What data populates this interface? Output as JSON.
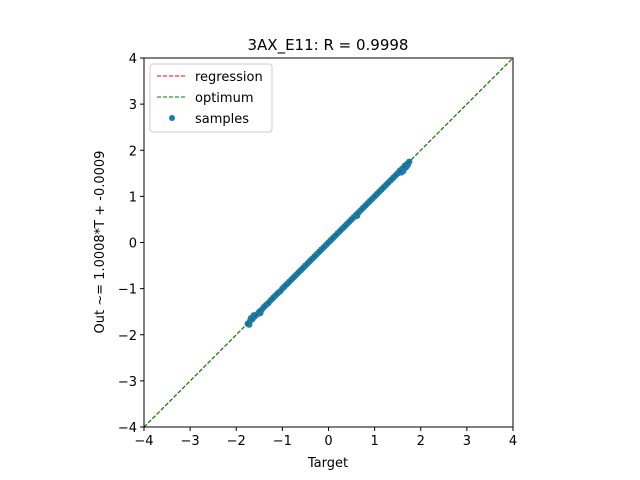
{
  "chart_data": {
    "type": "scatter",
    "title": "3AX_E11: R = 0.9998",
    "xlabel": "Target",
    "ylabel": "Out ~= 1.0008*T + -0.0009",
    "xlim": [
      -4,
      4
    ],
    "ylim": [
      -4,
      4
    ],
    "xticks": [
      -4,
      -3,
      -2,
      -1,
      0,
      1,
      2,
      3,
      4
    ],
    "yticks": [
      -4,
      -3,
      -2,
      -1,
      0,
      1,
      2,
      3,
      4
    ],
    "grid": false,
    "legend_position": "top-left",
    "series": [
      {
        "name": "regression",
        "kind": "line",
        "style": "dashed",
        "color": "#ff0000",
        "slope": 1.0008,
        "intercept": -0.0009
      },
      {
        "name": "optimum",
        "kind": "line",
        "style": "dashed",
        "color": "#008000",
        "slope": 1,
        "intercept": 0
      },
      {
        "name": "samples",
        "kind": "scatter",
        "color": "#1f77b4",
        "x_range": [
          -1.75,
          1.75
        ],
        "points": [
          [
            -1.75,
            -1.76
          ],
          [
            -1.7,
            -1.7
          ],
          [
            -1.65,
            -1.66
          ],
          [
            -1.6,
            -1.6
          ],
          [
            -1.55,
            -1.56
          ],
          [
            -1.5,
            -1.5
          ],
          [
            -1.45,
            -1.46
          ],
          [
            -1.4,
            -1.4
          ],
          [
            -1.35,
            -1.35
          ],
          [
            -1.3,
            -1.31
          ],
          [
            -1.25,
            -1.25
          ],
          [
            -1.2,
            -1.2
          ],
          [
            -1.15,
            -1.15
          ],
          [
            -1.1,
            -1.1
          ],
          [
            -1.05,
            -1.06
          ],
          [
            -1.0,
            -1.0
          ],
          [
            -0.95,
            -0.95
          ],
          [
            -0.9,
            -0.9
          ],
          [
            -0.85,
            -0.85
          ],
          [
            -0.8,
            -0.8
          ],
          [
            -0.75,
            -0.75
          ],
          [
            -0.7,
            -0.7
          ],
          [
            -0.65,
            -0.65
          ],
          [
            -0.6,
            -0.6
          ],
          [
            -0.55,
            -0.55
          ],
          [
            -0.5,
            -0.5
          ],
          [
            -0.45,
            -0.45
          ],
          [
            -0.4,
            -0.4
          ],
          [
            -0.35,
            -0.35
          ],
          [
            -0.3,
            -0.3
          ],
          [
            -0.25,
            -0.25
          ],
          [
            -0.2,
            -0.2
          ],
          [
            -0.15,
            -0.15
          ],
          [
            -0.1,
            -0.1
          ],
          [
            -0.05,
            -0.05
          ],
          [
            0.0,
            0.0
          ],
          [
            0.05,
            0.05
          ],
          [
            0.1,
            0.1
          ],
          [
            0.15,
            0.15
          ],
          [
            0.2,
            0.2
          ],
          [
            0.25,
            0.25
          ],
          [
            0.3,
            0.3
          ],
          [
            0.35,
            0.35
          ],
          [
            0.4,
            0.4
          ],
          [
            0.45,
            0.45
          ],
          [
            0.5,
            0.5
          ],
          [
            0.55,
            0.55
          ],
          [
            0.6,
            0.6
          ],
          [
            0.65,
            0.65
          ],
          [
            0.7,
            0.7
          ],
          [
            0.75,
            0.75
          ],
          [
            0.8,
            0.8
          ],
          [
            0.85,
            0.85
          ],
          [
            0.9,
            0.9
          ],
          [
            0.95,
            0.95
          ],
          [
            1.0,
            1.0
          ],
          [
            1.05,
            1.05
          ],
          [
            1.1,
            1.1
          ],
          [
            1.15,
            1.15
          ],
          [
            1.2,
            1.2
          ],
          [
            1.25,
            1.25
          ],
          [
            1.3,
            1.3
          ],
          [
            1.35,
            1.35
          ],
          [
            1.4,
            1.4
          ],
          [
            1.45,
            1.45
          ],
          [
            1.5,
            1.5
          ],
          [
            1.55,
            1.56
          ],
          [
            1.6,
            1.6
          ],
          [
            1.65,
            1.66
          ],
          [
            1.7,
            1.7
          ],
          [
            1.75,
            1.75
          ],
          [
            -1.72,
            -1.78
          ],
          [
            -1.62,
            -1.58
          ],
          [
            -1.48,
            -1.53
          ],
          [
            1.58,
            1.52
          ],
          [
            1.68,
            1.63
          ],
          [
            1.72,
            1.68
          ],
          [
            1.62,
            1.55
          ],
          [
            -1.68,
            -1.64
          ],
          [
            0.62,
            0.58
          ]
        ]
      }
    ]
  }
}
